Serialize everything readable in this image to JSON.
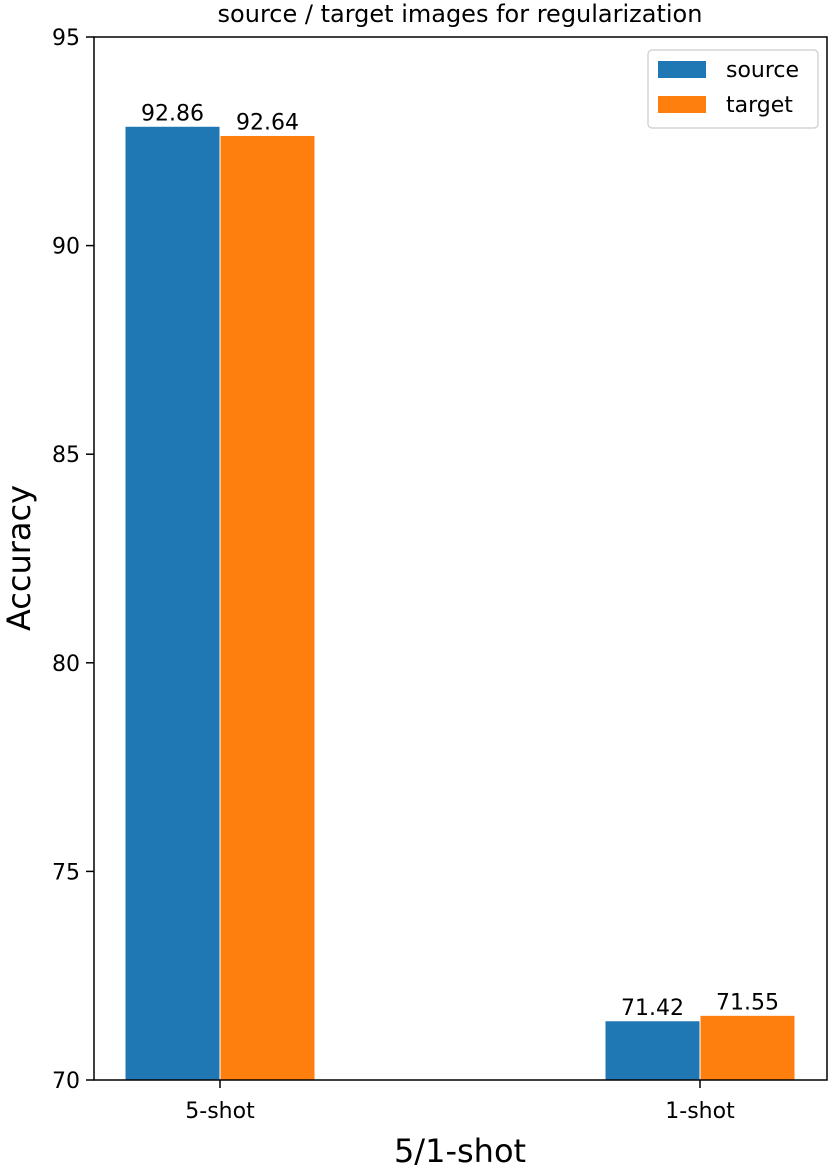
{
  "chart_data": {
    "type": "bar",
    "title": "source / target images for regularization",
    "xlabel": "5/1-shot",
    "ylabel": "Accuracy",
    "categories": [
      "5-shot",
      "1-shot"
    ],
    "series": [
      {
        "name": "source",
        "values": [
          92.86,
          71.42
        ],
        "labels": [
          "92.86",
          "71.42"
        ],
        "color": "#1f77b4"
      },
      {
        "name": "target",
        "values": [
          92.64,
          71.55
        ],
        "labels": [
          "92.64",
          "71.55"
        ],
        "color": "#ff7f0e"
      }
    ],
    "ylim": [
      70,
      95
    ],
    "yticks": [
      70,
      75,
      80,
      85,
      90,
      95
    ],
    "ytick_labels": [
      "70",
      "75",
      "80",
      "85",
      "90",
      "95"
    ],
    "grid": false,
    "legend": "top-right"
  }
}
